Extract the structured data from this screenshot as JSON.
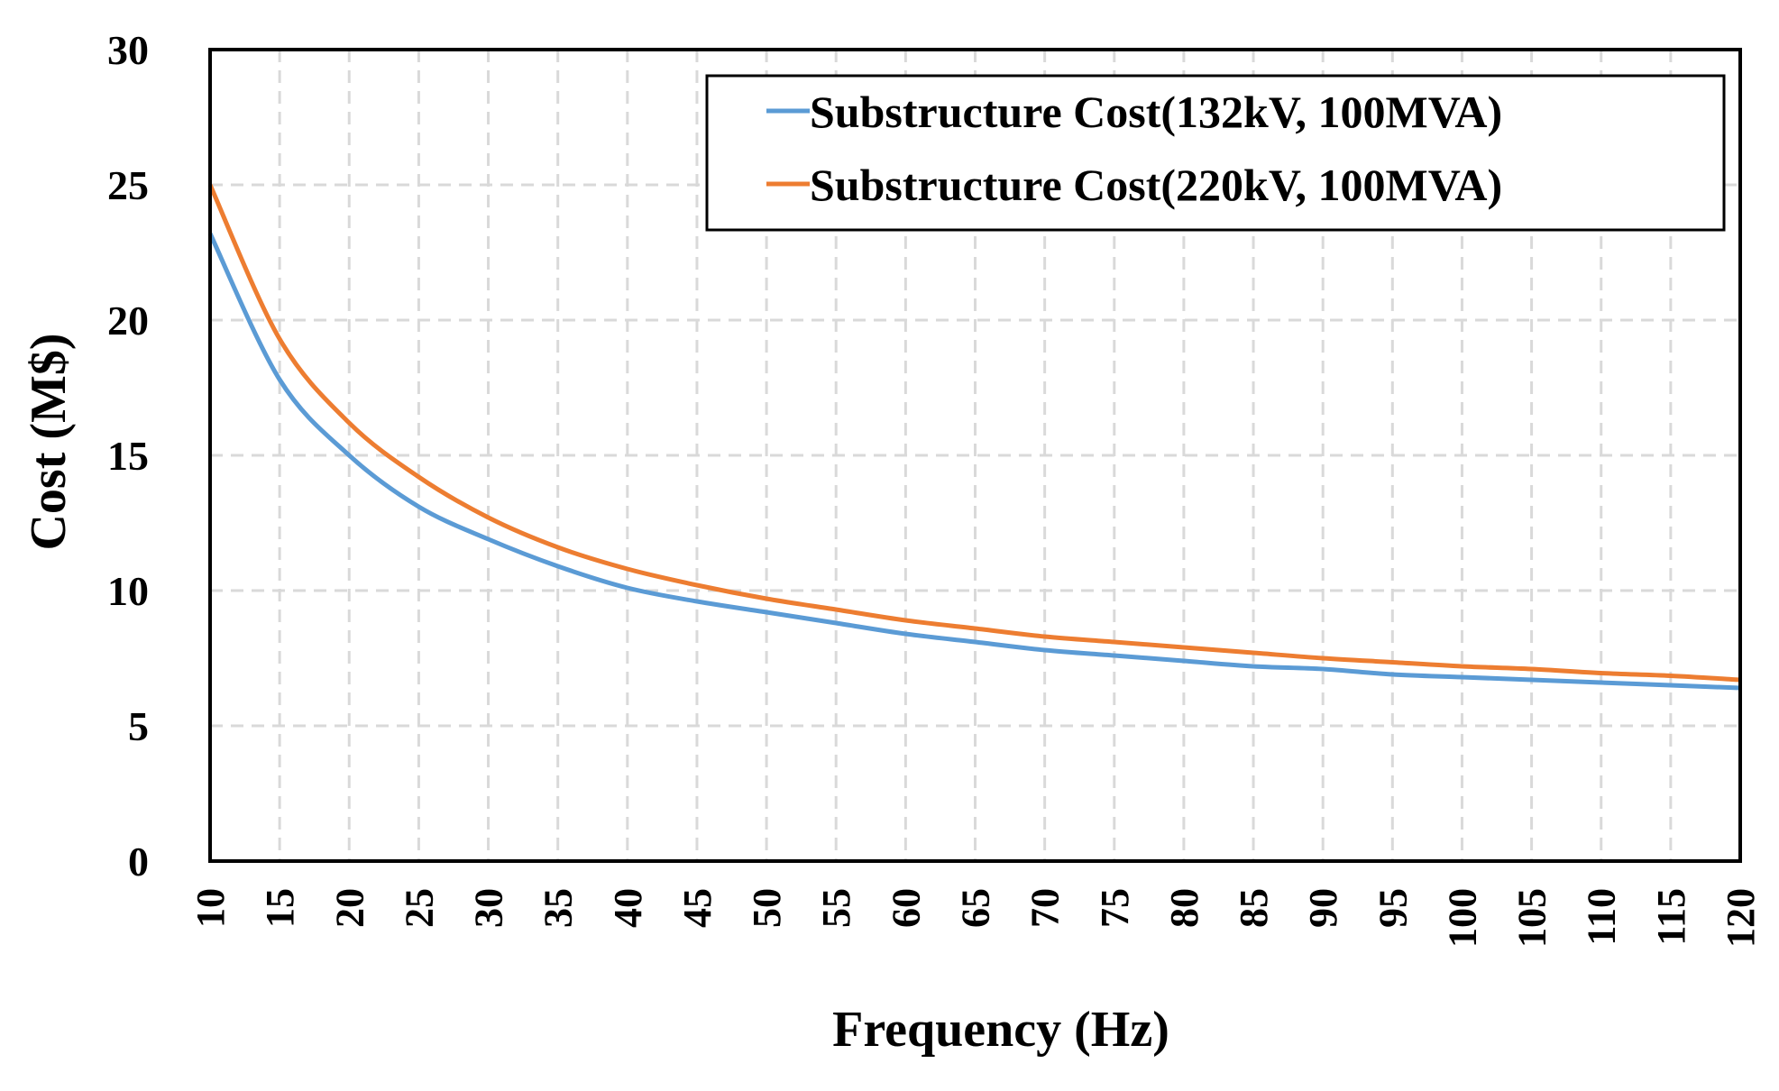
{
  "chart_data": {
    "type": "line",
    "title": "",
    "xlabel": "Frequency (Hz)",
    "ylabel": "Cost (M$)",
    "xlim": [
      10,
      120
    ],
    "ylim": [
      0,
      30
    ],
    "x_ticks": [
      "10",
      "15",
      "20",
      "25",
      "30",
      "35",
      "40",
      "45",
      "50",
      "55",
      "60",
      "65",
      "70",
      "75",
      "80",
      "85",
      "90",
      "95",
      "100",
      "105",
      "110",
      "115",
      "120"
    ],
    "y_ticks": [
      "0",
      "5",
      "10",
      "15",
      "20",
      "25",
      "30"
    ],
    "grid": true,
    "legend_position": "top-right",
    "x": [
      10,
      15,
      20,
      25,
      30,
      35,
      40,
      45,
      50,
      55,
      60,
      65,
      70,
      75,
      80,
      85,
      90,
      95,
      100,
      105,
      110,
      115,
      120
    ],
    "series": [
      {
        "name": "Substructure Cost(132kV, 100MVA)",
        "color": "#5B9BD5",
        "values": [
          23.2,
          17.8,
          15.0,
          13.1,
          11.9,
          10.9,
          10.1,
          9.6,
          9.2,
          8.8,
          8.4,
          8.1,
          7.8,
          7.6,
          7.4,
          7.2,
          7.1,
          6.9,
          6.8,
          6.7,
          6.6,
          6.5,
          6.4
        ]
      },
      {
        "name": "Substructure Cost(220kV, 100MVA)",
        "color": "#ED7D31",
        "values": [
          25.0,
          19.3,
          16.2,
          14.2,
          12.7,
          11.6,
          10.8,
          10.2,
          9.7,
          9.3,
          8.9,
          8.6,
          8.3,
          8.1,
          7.9,
          7.7,
          7.5,
          7.35,
          7.2,
          7.1,
          6.95,
          6.85,
          6.7
        ]
      }
    ]
  }
}
